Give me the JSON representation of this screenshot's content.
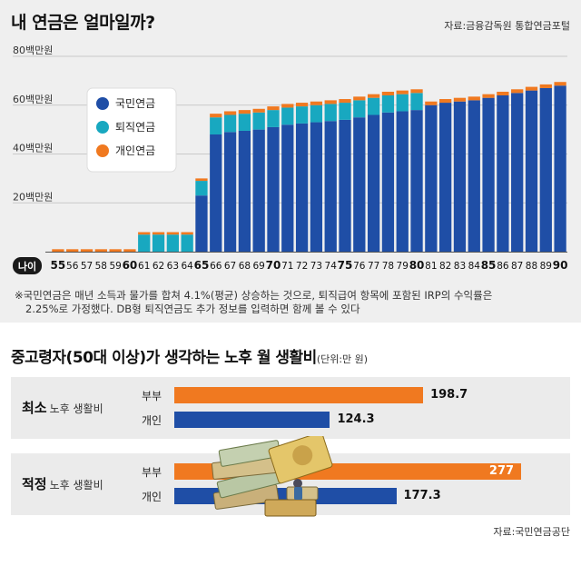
{
  "header": {
    "title": "내 연금은 얼마일까?",
    "source": "자료:금융감독원 통합연금포털"
  },
  "chart_data": {
    "type": "bar",
    "stacked": true,
    "xlabel": "나이",
    "ylim": [
      0,
      80
    ],
    "yticks": [
      20,
      40,
      60,
      80
    ],
    "ytick_labels": [
      "20백만원",
      "40백만원",
      "60백만원",
      "80백만원"
    ],
    "grid": true,
    "legend_position": "top-left",
    "categories": [
      "55",
      "56",
      "57",
      "58",
      "59",
      "60",
      "61",
      "62",
      "63",
      "64",
      "65",
      "66",
      "67",
      "68",
      "69",
      "70",
      "71",
      "72",
      "73",
      "74",
      "75",
      "76",
      "77",
      "78",
      "79",
      "80",
      "81",
      "82",
      "83",
      "84",
      "85",
      "86",
      "87",
      "88",
      "89",
      "90"
    ],
    "bold_categories": [
      "55",
      "60",
      "65",
      "70",
      "75",
      "80",
      "85",
      "90"
    ],
    "series": [
      {
        "name": "국민연금",
        "color": "#1f4ea6",
        "values": [
          0,
          0,
          0,
          0,
          0,
          0,
          0,
          0,
          0,
          0,
          23,
          48,
          49,
          49.5,
          50,
          51,
          52,
          52.5,
          53,
          53.5,
          54,
          55,
          56,
          57,
          57.5,
          58,
          60,
          61,
          61.5,
          62,
          63,
          64,
          65,
          66,
          67,
          68
        ]
      },
      {
        "name": "퇴직연금",
        "color": "#18a8c0",
        "values": [
          0,
          0,
          0,
          0,
          0,
          0,
          7,
          7,
          7,
          7,
          6,
          7,
          7,
          7,
          7,
          7,
          7,
          7,
          7,
          7,
          7,
          7,
          7,
          7,
          7,
          7,
          0,
          0,
          0,
          0,
          0,
          0,
          0,
          0,
          0,
          0
        ]
      },
      {
        "name": "개인연금",
        "color": "#f07920",
        "values": [
          1,
          1,
          1,
          1,
          1,
          1,
          1,
          1,
          1,
          1,
          1,
          1.5,
          1.5,
          1.5,
          1.5,
          1.5,
          1.5,
          1.5,
          1.5,
          1.5,
          1.5,
          1.5,
          1.5,
          1.5,
          1.5,
          1.5,
          1.5,
          1.5,
          1.5,
          1.5,
          1.5,
          1.5,
          1.5,
          1.5,
          1.5,
          1.5
        ]
      }
    ]
  },
  "notes": {
    "line1": "※국민연금은 매년 소득과 물가를 합쳐 4.1%(평균) 상승하는 것으로, 퇴직급여 항목에 포함된 IRP의 수익률은",
    "line2": "2.25%로 가정했다. DB형 퇴직연금도 추가 정보를 입력하면 함께 볼 수 있다"
  },
  "living_costs": {
    "title": "중고령자(50대 이상)가 생각하는 노후 월 생활비",
    "unit": "(단위:만 원)",
    "max": 290,
    "groups": [
      {
        "label": "최소",
        "sub": "노후 생활비",
        "rows": [
          {
            "label": "부부",
            "value": 198.7,
            "value_text": "198.7",
            "color": "#f07920"
          },
          {
            "label": "개인",
            "value": 124.3,
            "value_text": "124.3",
            "color": "#1f4ea6"
          }
        ]
      },
      {
        "label": "적정",
        "sub": "노후 생활비",
        "rows": [
          {
            "label": "부부",
            "value": 277,
            "value_text": "277",
            "color": "#f07920"
          },
          {
            "label": "개인",
            "value": 177.3,
            "value_text": "177.3",
            "color": "#1f4ea6"
          }
        ]
      }
    ],
    "source": "자료:국민연금공단"
  }
}
